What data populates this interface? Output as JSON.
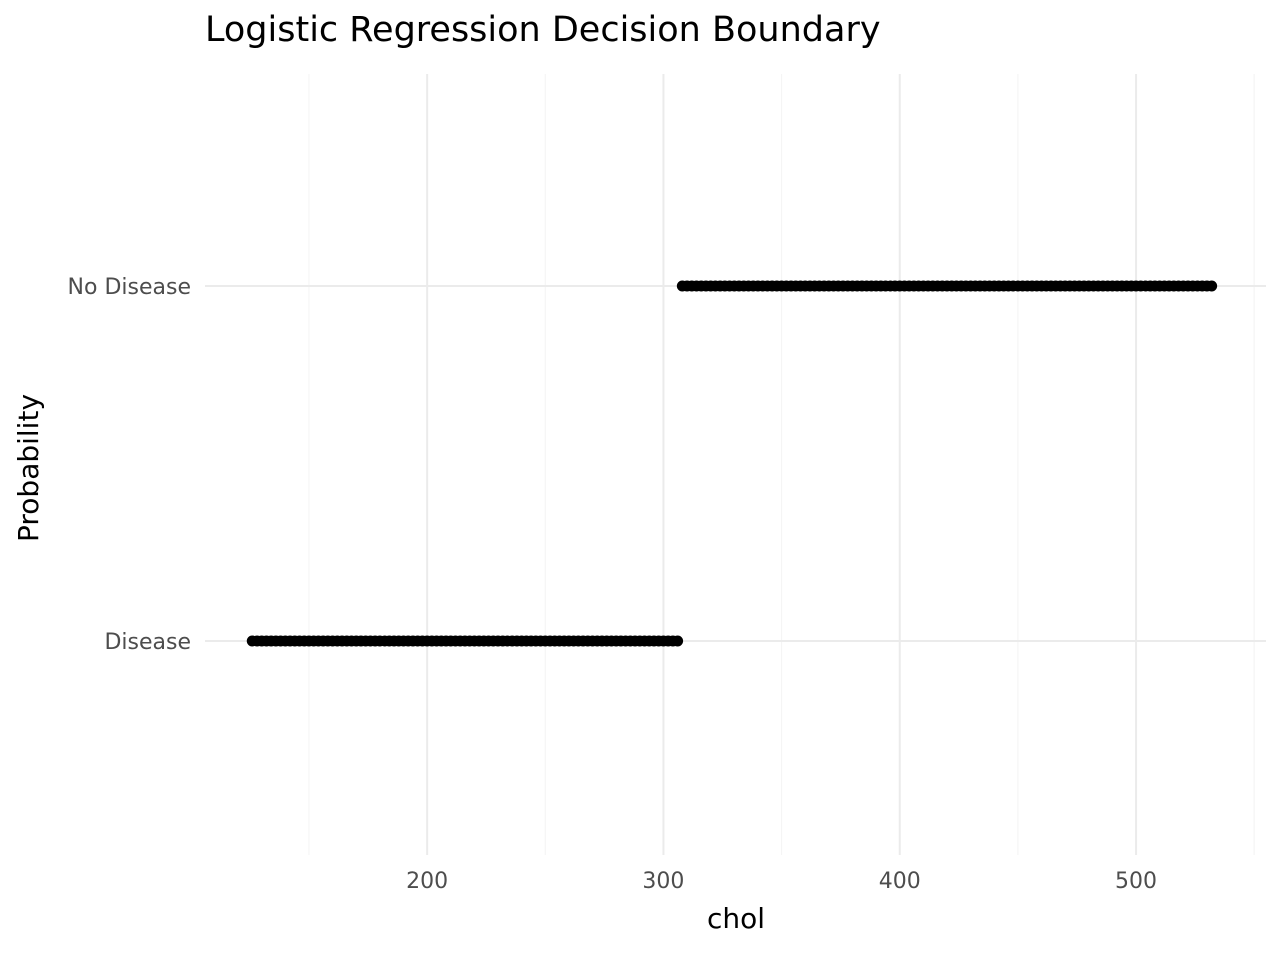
{
  "chart_data": {
    "type": "scatter",
    "title": "Logistic Regression Decision Boundary",
    "xlabel": "chol",
    "ylabel": "Probability",
    "xlim": [
      106,
      555
    ],
    "x_ticks": [
      200,
      300,
      400,
      500
    ],
    "x_minor_ticks": [
      150,
      250,
      350,
      450,
      550
    ],
    "y_categories": [
      "Disease",
      "No Disease"
    ],
    "grid": true,
    "legend": "none",
    "series": [
      {
        "category": "Disease",
        "x_start": 126,
        "x_end": 307,
        "x_step": 2
      },
      {
        "category": "No Disease",
        "x_start": 308,
        "x_end": 533,
        "x_step": 2
      }
    ],
    "colors": {
      "points": "#000000",
      "grid_major": "#ebebeb",
      "grid_minor": "#f5f5f5",
      "tick_text": "#4d4d4d"
    }
  }
}
